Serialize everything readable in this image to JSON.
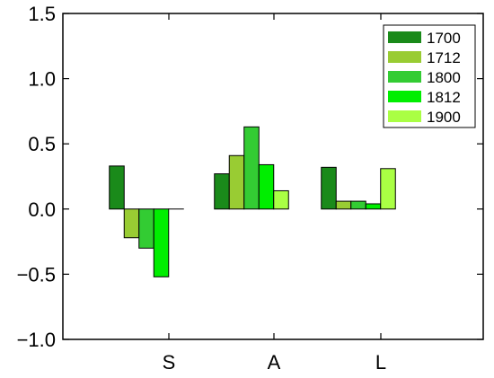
{
  "chart_data": {
    "type": "bar",
    "title": "",
    "xlabel": "",
    "ylabel": "",
    "categories": [
      "S",
      "A",
      "L"
    ],
    "ylim": [
      -1.0,
      1.5
    ],
    "yticks": [
      -1.0,
      -0.5,
      0.0,
      0.5,
      1.0,
      1.5
    ],
    "ytick_labels": [
      "−1.0",
      "−0.5",
      "0.0",
      "0.5",
      "1.0",
      "1.5"
    ],
    "grid": false,
    "legend_position": "top-right",
    "series": [
      {
        "name": "1700",
        "color": "#1a8a1a",
        "values": [
          0.33,
          0.27,
          0.32
        ]
      },
      {
        "name": "1712",
        "color": "#99cc33",
        "values": [
          -0.22,
          0.41,
          0.06
        ]
      },
      {
        "name": "1800",
        "color": "#33cc33",
        "values": [
          -0.3,
          0.63,
          0.06
        ]
      },
      {
        "name": "1812",
        "color": "#00ee00",
        "values": [
          -0.52,
          0.34,
          0.04
        ]
      },
      {
        "name": "1900",
        "color": "#aaff44",
        "values": [
          0.0,
          0.14,
          0.31
        ]
      }
    ]
  }
}
